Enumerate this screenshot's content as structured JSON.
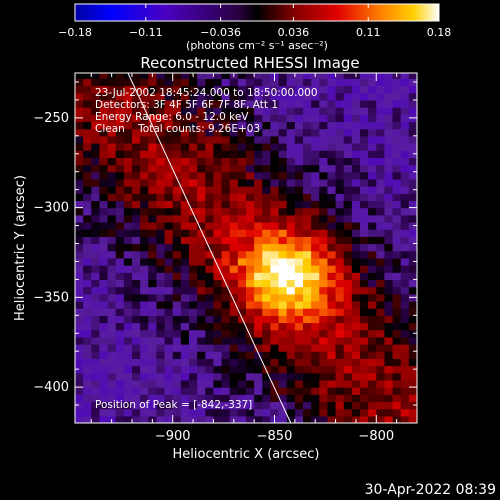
{
  "chart_data": {
    "type": "heatmap",
    "title": "Reconstructed RHESSI Image",
    "xlabel": "Heliocentric X (arcsec)",
    "ylabel": "Heliocentric Y (arcsec)",
    "xlim": [
      -948,
      -780
    ],
    "ylim": [
      -420,
      -225
    ],
    "x_ticks": [
      -900,
      -850,
      -800
    ],
    "y_ticks": [
      -250,
      -300,
      -350,
      -400
    ],
    "x_tick_labels": [
      "−900",
      "−850",
      "−800"
    ],
    "y_tick_labels": [
      "−250",
      "−300",
      "−350",
      "−400"
    ],
    "colorbar": {
      "min": -0.18,
      "max": 0.18,
      "tick_values": [
        -0.18,
        -0.11,
        -0.036,
        0.036,
        0.11,
        0.18
      ],
      "tick_labels": [
        "−0.18",
        "−0.11",
        "−0.036",
        "0.036",
        "0.11",
        "0.18"
      ],
      "unit_label": "(photons cm⁻² s⁻¹ asec⁻²)"
    },
    "annotations": [
      "23-Jul-2002 18:45:24.000 to 18:50:00.000",
      "Detectors: 3F 4F 5F 6F 7F 8F, Att 1",
      "Energy Range: 6.0 - 12.0 keV",
      "Clean    Total counts: 9.26E+03"
    ],
    "peak_label": "Position of Peak = [-842,-337]",
    "peak": [
      -842,
      -337
    ],
    "limb_line": [
      [
        -922,
        -225
      ],
      [
        -842,
        -420
      ]
    ],
    "source_ridge": {
      "from": [
        -915,
        -260
      ],
      "to": [
        -800,
        -400
      ],
      "width": 30
    },
    "hot_spot": {
      "center": [
        -843,
        -337
      ],
      "radius": 17,
      "value": 0.18
    },
    "grid": false
  },
  "timestamp": "30-Apr-2022 08:39"
}
